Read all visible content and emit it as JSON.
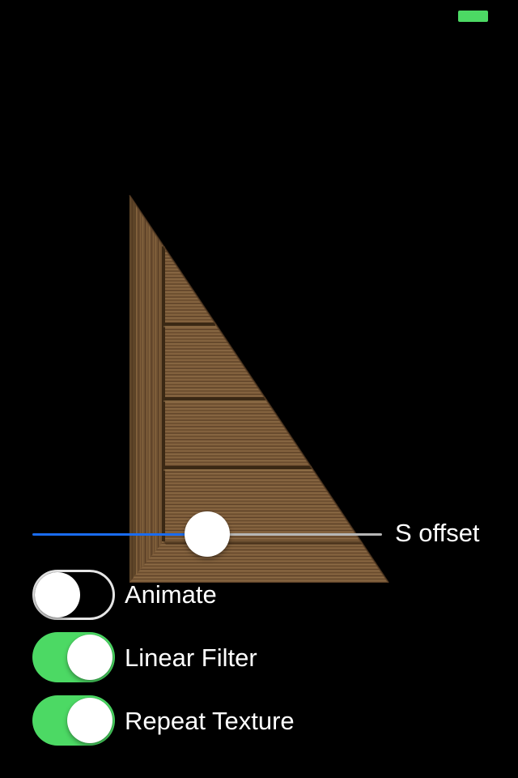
{
  "status_bar": {
    "battery_color": "#4cd964"
  },
  "scene": {
    "description_icon": "textured-wood-triangle"
  },
  "slider": {
    "label": "S offset",
    "value": 0.5,
    "min_track_color": "#1a6cf0",
    "max_track_color": "#b6b6b6"
  },
  "switches": [
    {
      "label": "Animate",
      "on": false
    },
    {
      "label": "Linear Filter",
      "on": true
    },
    {
      "label": "Repeat Texture",
      "on": true
    }
  ],
  "colors": {
    "switch_on": "#4cd964",
    "switch_off_border": "#e5e5e5",
    "background": "#000000"
  }
}
